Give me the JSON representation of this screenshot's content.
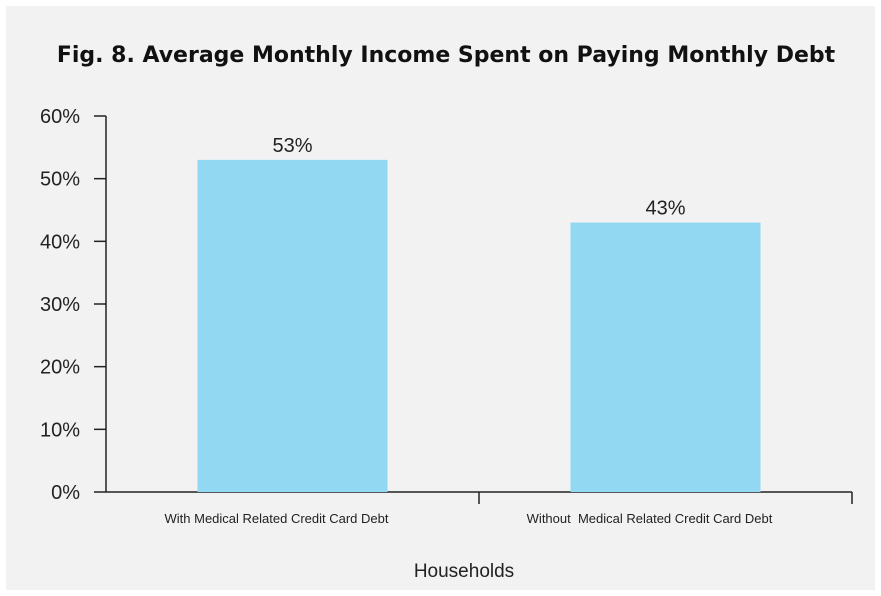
{
  "chart_data": {
    "type": "bar",
    "title": "Fig. 8. Average Monthly Income Spent on Paying Monthly Debt",
    "xlabel": "Households",
    "ylabel": "",
    "categories": [
      "With Medical Related Credit Card Debt",
      "Without  Medical Related Credit Card Debt"
    ],
    "values": [
      53,
      43
    ],
    "data_labels": [
      "53%",
      "43%"
    ],
    "ylim": [
      0,
      60
    ],
    "y_ticks": [
      0,
      10,
      20,
      30,
      40,
      50,
      60
    ],
    "y_tick_labels": [
      "0%",
      "10%",
      "20%",
      "30%",
      "40%",
      "50%",
      "60%"
    ],
    "bar_color": "#92d8f2",
    "background_color": "#f2f2f2",
    "grid": false,
    "legend": "none"
  }
}
